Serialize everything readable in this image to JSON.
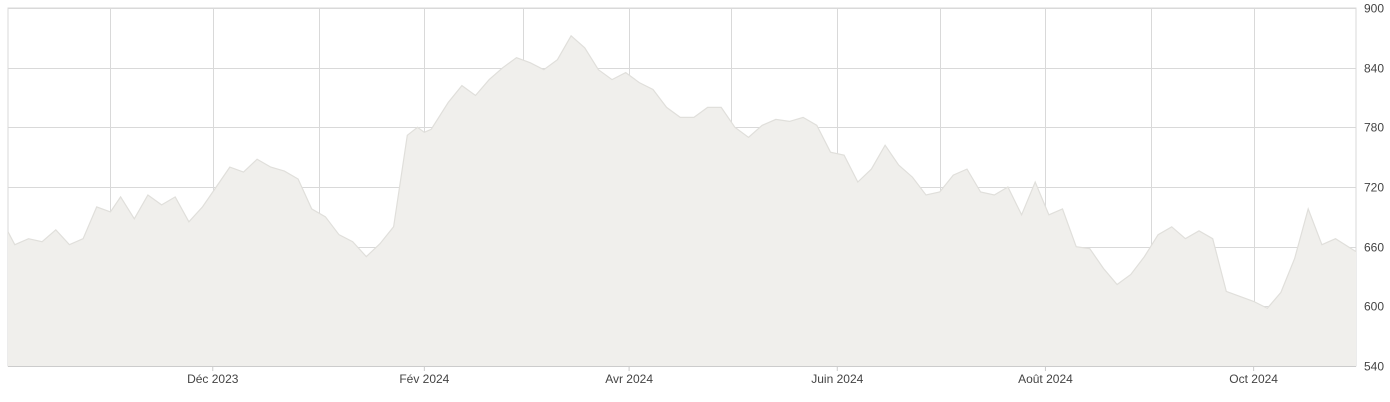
{
  "chart_data": {
    "type": "area",
    "title": "",
    "xlabel": "",
    "ylabel": "",
    "ylim": [
      540,
      900
    ],
    "y_ticks": [
      540,
      600,
      660,
      720,
      780,
      840,
      900
    ],
    "y_tick_labels": [
      "540",
      "600",
      "660",
      "720",
      "780",
      "840",
      "900"
    ],
    "x_range": [
      "2023-10-02",
      "2024-10-31"
    ],
    "x_ticks": [
      {
        "date": "2023-12-01",
        "label": "Déc 2023"
      },
      {
        "date": "2024-02-01",
        "label": "Fév 2024"
      },
      {
        "date": "2024-04-01",
        "label": "Avr 2024"
      },
      {
        "date": "2024-06-01",
        "label": "Juin 2024"
      },
      {
        "date": "2024-08-01",
        "label": "Août 2024"
      },
      {
        "date": "2024-10-01",
        "label": "Oct 2024"
      }
    ],
    "x_gridlines": [
      "2023-11-01",
      "2023-12-01",
      "2024-01-01",
      "2024-02-01",
      "2024-03-01",
      "2024-04-01",
      "2024-05-01",
      "2024-06-01",
      "2024-07-01",
      "2024-08-01",
      "2024-09-01",
      "2024-10-01"
    ],
    "grid": true,
    "colors": {
      "fill": "#f0efec",
      "line": "#e0dfdb",
      "grid": "#d9d9d9",
      "axis": "#cccccc",
      "text": "#444444"
    },
    "series": [
      {
        "x": [
          "2023-10-02",
          "2023-10-04",
          "2023-10-08",
          "2023-10-12",
          "2023-10-16",
          "2023-10-20",
          "2023-10-24",
          "2023-10-28",
          "2023-11-01",
          "2023-11-04",
          "2023-11-08",
          "2023-11-12",
          "2023-11-16",
          "2023-11-20",
          "2023-11-24",
          "2023-11-28",
          "2023-12-02",
          "2023-12-06",
          "2023-12-10",
          "2023-12-14",
          "2023-12-18",
          "2023-12-22",
          "2023-12-26",
          "2023-12-30",
          "2024-01-03",
          "2024-01-07",
          "2024-01-11",
          "2024-01-15",
          "2024-01-19",
          "2024-01-23",
          "2024-01-27",
          "2024-01-30",
          "2024-02-01",
          "2024-02-03",
          "2024-02-08",
          "2024-02-12",
          "2024-02-16",
          "2024-02-20",
          "2024-02-24",
          "2024-02-28",
          "2024-03-03",
          "2024-03-07",
          "2024-03-11",
          "2024-03-15",
          "2024-03-19",
          "2024-03-23",
          "2024-03-27",
          "2024-03-31",
          "2024-04-04",
          "2024-04-08",
          "2024-04-12",
          "2024-04-16",
          "2024-04-20",
          "2024-04-24",
          "2024-04-28",
          "2024-05-02",
          "2024-05-06",
          "2024-05-10",
          "2024-05-14",
          "2024-05-18",
          "2024-05-22",
          "2024-05-26",
          "2024-05-30",
          "2024-06-03",
          "2024-06-07",
          "2024-06-11",
          "2024-06-15",
          "2024-06-19",
          "2024-06-23",
          "2024-06-27",
          "2024-07-01",
          "2024-07-05",
          "2024-07-09",
          "2024-07-13",
          "2024-07-17",
          "2024-07-21",
          "2024-07-25",
          "2024-07-29",
          "2024-08-02",
          "2024-08-06",
          "2024-08-10",
          "2024-08-14",
          "2024-08-18",
          "2024-08-22",
          "2024-08-26",
          "2024-08-30",
          "2024-09-03",
          "2024-09-07",
          "2024-09-11",
          "2024-09-15",
          "2024-09-19",
          "2024-09-23",
          "2024-09-27",
          "2024-10-01",
          "2024-10-05",
          "2024-10-09",
          "2024-10-13",
          "2024-10-17",
          "2024-10-21",
          "2024-10-25",
          "2024-10-31"
        ],
        "y": [
          675,
          662,
          668,
          665,
          677,
          662,
          668,
          700,
          695,
          710,
          688,
          712,
          702,
          710,
          685,
          700,
          720,
          740,
          735,
          748,
          740,
          736,
          728,
          698,
          690,
          672,
          665,
          650,
          663,
          680,
          772,
          780,
          775,
          778,
          805,
          822,
          812,
          828,
          840,
          850,
          845,
          838,
          848,
          872,
          860,
          838,
          828,
          835,
          825,
          818,
          800,
          790,
          790,
          800,
          800,
          780,
          770,
          782,
          788,
          786,
          790,
          782,
          755,
          752,
          725,
          738,
          762,
          742,
          730,
          712,
          715,
          732,
          738,
          715,
          712,
          720,
          692,
          725,
          692,
          698,
          660,
          658,
          638,
          622,
          632,
          650,
          672,
          680,
          668,
          676,
          668,
          615,
          610,
          605,
          598,
          614,
          648,
          698,
          662,
          668,
          655
        ]
      }
    ]
  }
}
